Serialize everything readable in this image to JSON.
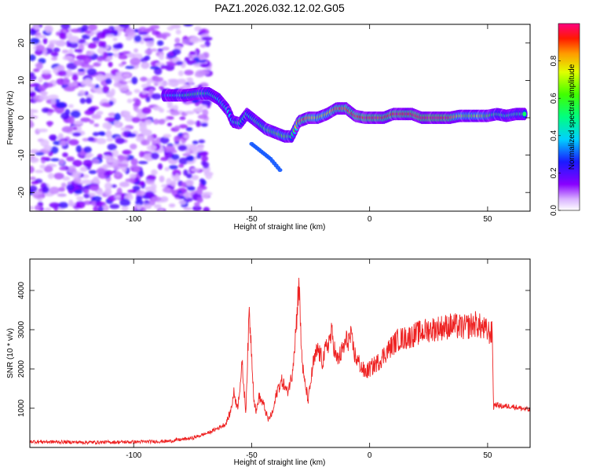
{
  "title": "PAZ1.2026.032.12.02.G05",
  "chart_data": [
    {
      "type": "heatmap",
      "xlabel": "Height of straight line (km)",
      "ylabel": "Frequency (Hz)",
      "xlim": [
        -144,
        68
      ],
      "ylim": [
        -25,
        25
      ],
      "xticks": [
        -100,
        -50,
        0,
        50
      ],
      "yticks": [
        -20,
        -10,
        0,
        10,
        20
      ],
      "colorbar": {
        "label": "Normalized spectral amplitude",
        "range": [
          0,
          1
        ],
        "ticks": [
          0.0,
          0.2,
          0.4,
          0.6,
          0.8
        ],
        "tick_labels": [
          "0.0",
          "0.2",
          "0.4",
          "0.6",
          "0.8"
        ],
        "colormap": "rainbow (white, violet, blue, cyan, green, yellow, orange, red, magenta)"
      },
      "noise_region": {
        "x_from": -144,
        "x_to": -68
      },
      "ridge": {
        "x": [
          -87,
          -78,
          -72,
          -68,
          -64,
          -60,
          -58,
          -55,
          -52,
          -48,
          -44,
          -40,
          -36,
          -33,
          -30,
          -26,
          -22,
          -18,
          -14,
          -10,
          -6,
          -2,
          2,
          6,
          10,
          14,
          18,
          22,
          26,
          30,
          34,
          38,
          42,
          46,
          50,
          54,
          58,
          62,
          66
        ],
        "freq": [
          6,
          6,
          6.5,
          6.5,
          5,
          2,
          -1,
          -1.5,
          1,
          -1,
          -3,
          -4,
          -5,
          -5,
          -1,
          0,
          0,
          1,
          2.5,
          2.5,
          0.5,
          0,
          0,
          0,
          1,
          1,
          1,
          0,
          0,
          0,
          0,
          0.5,
          0.5,
          0.5,
          0.5,
          1,
          0.5,
          1,
          1
        ],
        "amplitude": [
          0.3,
          0.5,
          0.55,
          0.5,
          0.4,
          0.4,
          0.45,
          0.5,
          0.45,
          0.5,
          0.55,
          0.6,
          0.65,
          0.5,
          0.85,
          0.85,
          0.7,
          0.7,
          0.85,
          0.85,
          0.9,
          0.95,
          0.95,
          0.9,
          0.95,
          0.95,
          0.95,
          1.0,
          1.0,
          1.0,
          0.95,
          0.7,
          0.65,
          0.7,
          0.6,
          0.5,
          0.5,
          0.5,
          0.5
        ]
      },
      "secondary_ridge": {
        "x": [
          -50,
          -46,
          -42,
          -38
        ],
        "freq": [
          -7,
          -9,
          -11,
          -14
        ],
        "amplitude": 0.3
      }
    },
    {
      "type": "line",
      "xlabel": "Height of straight line (km)",
      "ylabel": "SNR (10 * v/v)",
      "xlim": [
        -144,
        68
      ],
      "ylim": [
        0,
        4800
      ],
      "xticks": [
        -100,
        -50,
        0,
        50
      ],
      "yticks": [
        1000,
        2000,
        3000,
        4000
      ],
      "color": "#ee2222",
      "series": [
        {
          "x": [
            -144,
            -120,
            -100,
            -85,
            -75,
            -68,
            -64,
            -61,
            -59,
            -57.5,
            -56,
            -54,
            -52.5,
            -51,
            -50,
            -49,
            -48,
            -47,
            -45,
            -43,
            -41,
            -39,
            -37,
            -35,
            -33,
            -31,
            -30,
            -29,
            -28,
            -26,
            -24,
            -22,
            -20,
            -18,
            -16,
            -14,
            -12,
            -10,
            -8,
            -6,
            -4,
            -2,
            0,
            4,
            8,
            12,
            16,
            20,
            25,
            30,
            35,
            40,
            45,
            50,
            52,
            52.5,
            53,
            56,
            60,
            64,
            68
          ],
          "y": [
            150,
            130,
            140,
            160,
            240,
            380,
            500,
            600,
            900,
            1400,
            1000,
            2100,
            900,
            3500,
            2400,
            1200,
            900,
            1300,
            1100,
            700,
            900,
            1500,
            1700,
            1400,
            1800,
            3200,
            4300,
            2600,
            1800,
            1200,
            2100,
            2500,
            2200,
            2600,
            2900,
            2200,
            2400,
            2700,
            2800,
            2300,
            2100,
            1900,
            2000,
            2200,
            2500,
            2750,
            2800,
            2900,
            3000,
            3050,
            3100,
            3050,
            3150,
            2950,
            2900,
            1000,
            1100,
            1050,
            1050,
            1000,
            950
          ]
        }
      ]
    }
  ]
}
